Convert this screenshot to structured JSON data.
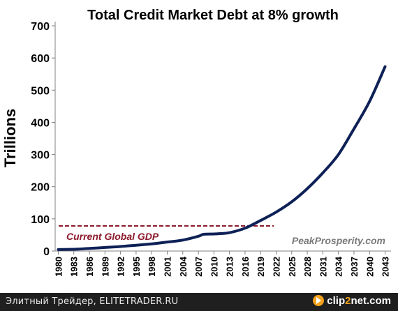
{
  "chart_data": {
    "type": "line",
    "title": "Total Credit Market Debt at 8% growth",
    "ylabel": "Trillions",
    "xlabel": "",
    "ylim": [
      0,
      700
    ],
    "yticks": [
      0,
      100,
      200,
      300,
      400,
      500,
      600,
      700
    ],
    "grid": false,
    "x_ticks": [
      "1980",
      "1983",
      "1986",
      "1989",
      "1992",
      "1995",
      "1998",
      "2001",
      "2004",
      "2007",
      "2010",
      "2013",
      "2016",
      "2019",
      "2022",
      "2025",
      "2028",
      "2031",
      "2034",
      "2037",
      "2040",
      "2043"
    ],
    "series": [
      {
        "color": "#0e2157",
        "x": [
          1980,
          1983,
          1986,
          1989,
          1992,
          1995,
          1998,
          2001,
          2004,
          2007,
          2008,
          2010,
          2011,
          2013,
          2016,
          2019,
          2022,
          2025,
          2028,
          2031,
          2034,
          2037,
          2040,
          2043
        ],
        "y": [
          4.5,
          5.5,
          8,
          11,
          14,
          18,
          22,
          28,
          34,
          46,
          52,
          53,
          54,
          57,
          71,
          95,
          121,
          153,
          194,
          243,
          300,
          380,
          465,
          573
        ]
      }
    ],
    "reference_line": {
      "value": 78,
      "label": "Current Global GDP",
      "color": "#8b1a2b",
      "style": "dashed"
    },
    "watermark": "PeakProsperity.com"
  },
  "footer": {
    "caption": "Элитный Трейдер, ELITETRADER.RU",
    "brand_prefix": "clip",
    "brand_digit": "2",
    "brand_suffix": "net.com"
  }
}
